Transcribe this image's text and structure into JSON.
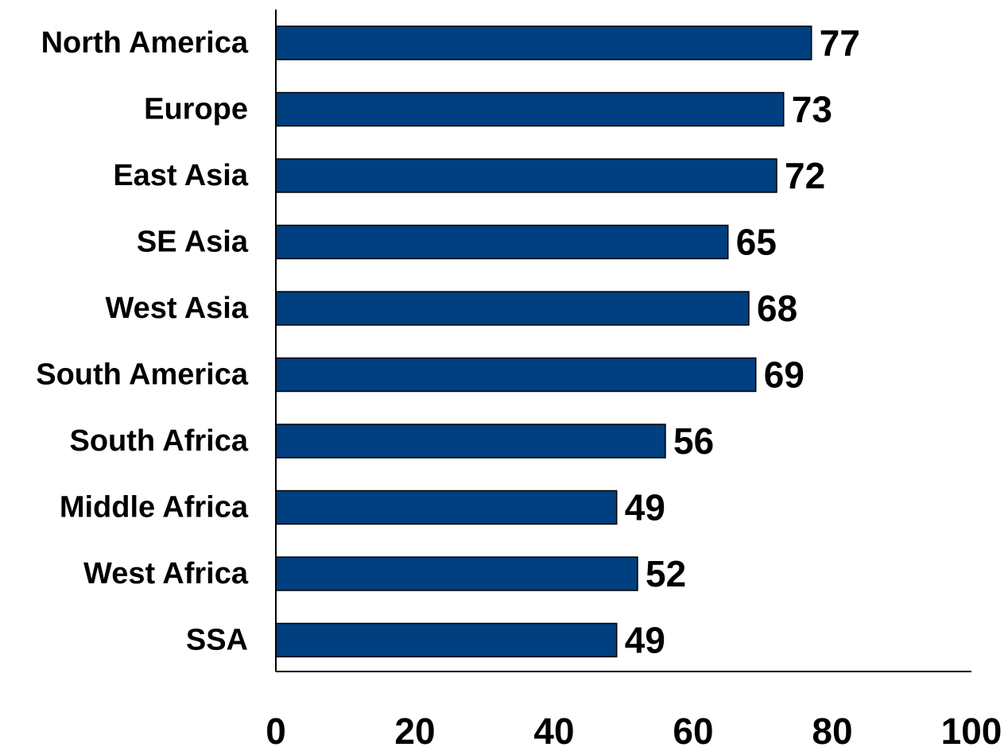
{
  "chart_data": {
    "type": "bar",
    "orientation": "horizontal",
    "title": "",
    "xlabel": "",
    "ylabel": "",
    "categories": [
      "North America",
      "Europe",
      "East Asia",
      "SE Asia",
      "West Asia",
      "South America",
      "South Africa",
      "Middle Africa",
      "West Africa",
      "SSA"
    ],
    "values": [
      77,
      73,
      72,
      65,
      68,
      69,
      56,
      49,
      52,
      49
    ],
    "xlim": [
      0,
      100
    ],
    "xticks": [
      "0",
      "20",
      "40",
      "60",
      "80",
      "100"
    ],
    "grid": false,
    "legend": "none",
    "bar_color": "#003F80",
    "bar_edge_color": "#000000",
    "data_labels": true
  }
}
